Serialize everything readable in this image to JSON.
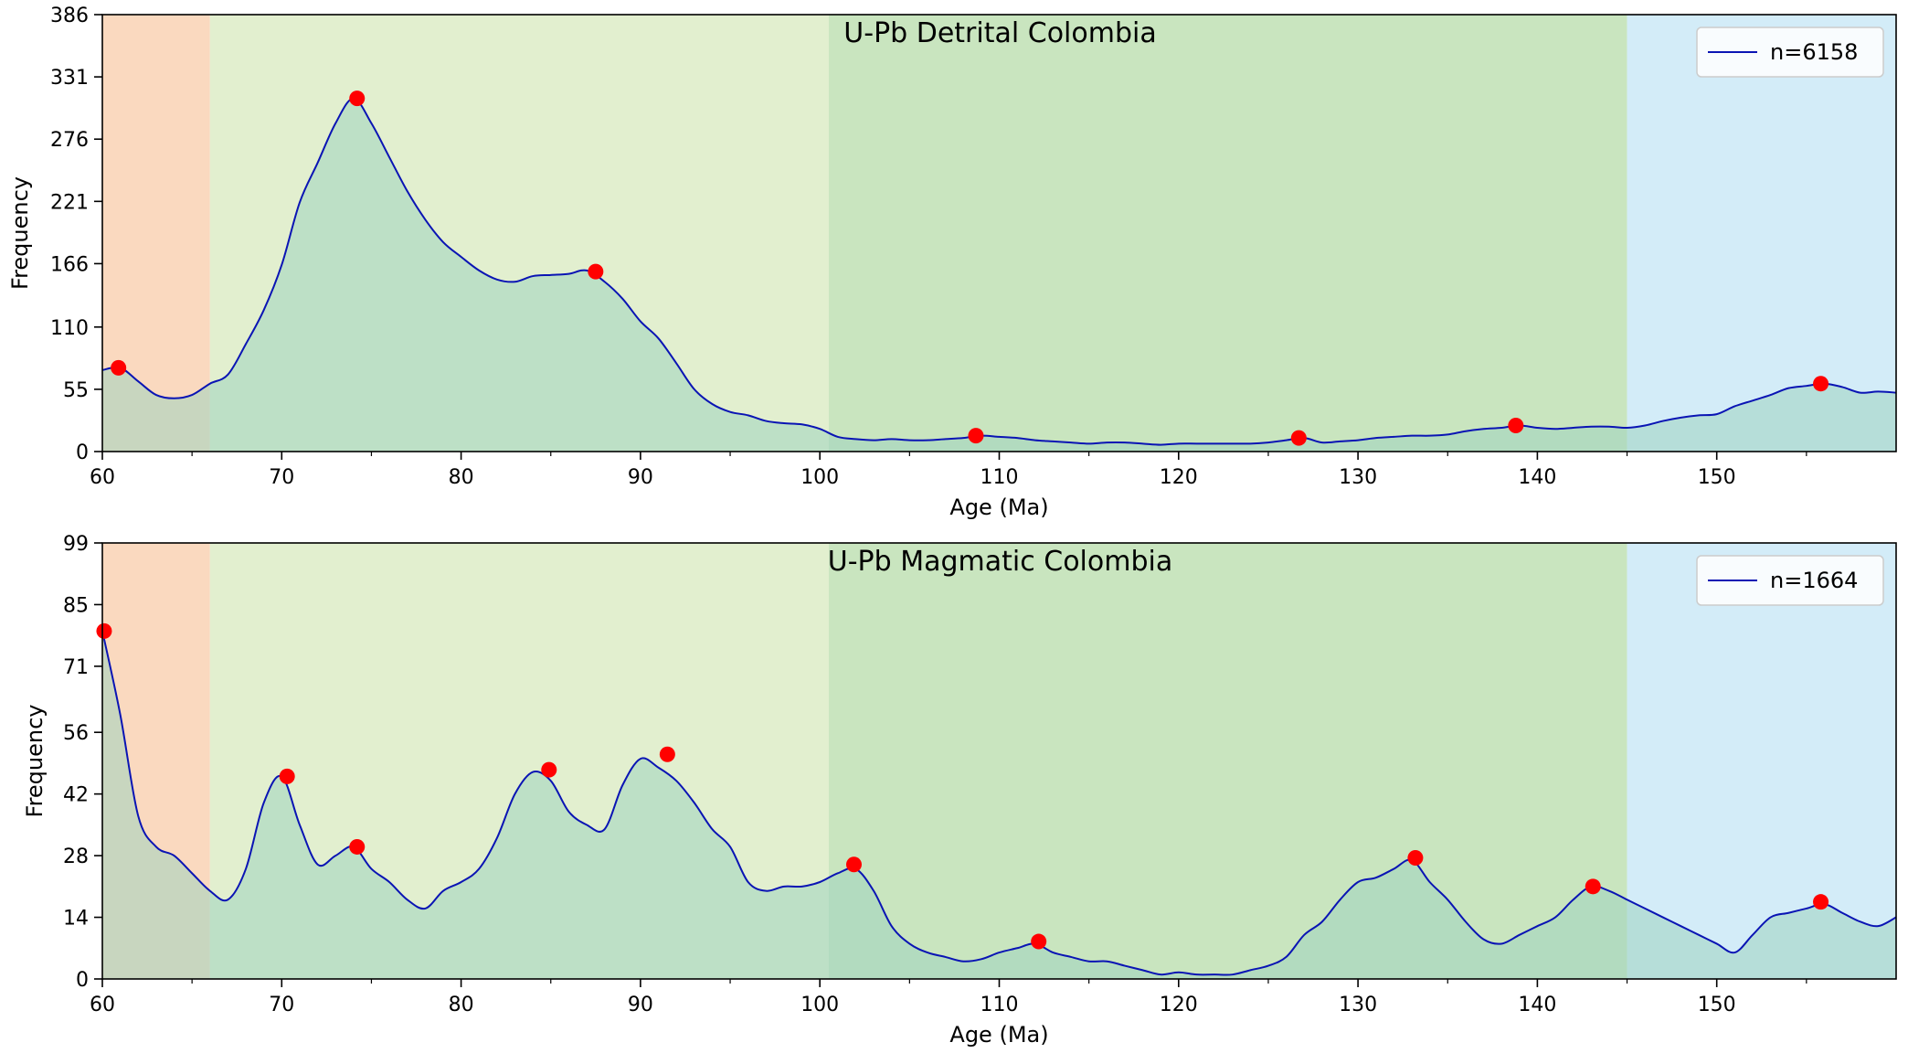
{
  "chart_data": [
    {
      "type": "line",
      "title": "U-Pb Detrital Colombia",
      "xlabel": "Age (Ma)",
      "ylabel": "Frequency",
      "xlim": [
        60,
        160
      ],
      "ylim": [
        0,
        386
      ],
      "xticks": [
        60,
        70,
        80,
        90,
        100,
        110,
        120,
        130,
        140,
        150
      ],
      "xtick_labels": [
        "60",
        "70",
        "80",
        "90",
        "100",
        "110",
        "120",
        "130",
        "140",
        "150"
      ],
      "yticks": [
        0,
        55,
        110,
        166,
        221,
        276,
        331,
        386
      ],
      "ytick_labels": [
        "0",
        "55",
        "110",
        "166",
        "221",
        "276",
        "331",
        "386"
      ],
      "grid": false,
      "legend": {
        "position": "top-right",
        "entries": [
          "n=6158"
        ]
      },
      "background_bands": [
        {
          "from": 60,
          "to": 66,
          "color": "#fad9bf"
        },
        {
          "from": 66,
          "to": 100.5,
          "color": "#e2efcf"
        },
        {
          "from": 100.5,
          "to": 145,
          "color": "#c9e5bf"
        },
        {
          "from": 145,
          "to": 160,
          "color": "#d3ecf8"
        }
      ],
      "line_color": "#0a14b4",
      "fill_color": "#9ed3c0",
      "peak_color": "#ff0000",
      "series": [
        {
          "name": "n=6158",
          "x": [
            60,
            61,
            62,
            63,
            64,
            65,
            66,
            67,
            68,
            69,
            70,
            71,
            72,
            73,
            74,
            75,
            76,
            77,
            78,
            79,
            80,
            81,
            82,
            83,
            84,
            85,
            86,
            87,
            88,
            89,
            90,
            91,
            92,
            93,
            94,
            95,
            96,
            97,
            98,
            99,
            100,
            101,
            102,
            103,
            104,
            105,
            106,
            107,
            108,
            109,
            110,
            111,
            112,
            113,
            114,
            115,
            116,
            117,
            118,
            119,
            120,
            121,
            122,
            123,
            124,
            125,
            126,
            127,
            128,
            129,
            130,
            131,
            132,
            133,
            134,
            135,
            136,
            137,
            138,
            139,
            140,
            141,
            142,
            143,
            144,
            145,
            146,
            147,
            148,
            149,
            150,
            151,
            152,
            153,
            154,
            155,
            156,
            157,
            158,
            159,
            160
          ],
          "y": [
            72,
            74,
            62,
            50,
            47,
            50,
            60,
            68,
            95,
            125,
            165,
            220,
            255,
            290,
            312,
            290,
            260,
            230,
            205,
            185,
            172,
            160,
            152,
            150,
            155,
            156,
            157,
            160,
            150,
            135,
            115,
            100,
            78,
            55,
            42,
            35,
            32,
            27,
            25,
            24,
            20,
            13,
            11,
            10,
            11,
            10,
            10,
            11,
            12,
            14,
            13,
            12,
            10,
            9,
            8,
            7,
            8,
            8,
            7,
            6,
            7,
            7,
            7,
            7,
            7,
            8,
            10,
            12,
            8,
            9,
            10,
            12,
            13,
            14,
            14,
            15,
            18,
            20,
            21,
            23,
            21,
            20,
            21,
            22,
            22,
            21,
            23,
            27,
            30,
            32,
            33,
            40,
            45,
            50,
            56,
            58,
            60,
            57,
            52,
            53,
            52
          ]
        }
      ],
      "peaks": [
        {
          "x": 60.9,
          "y": 74
        },
        {
          "x": 74.2,
          "y": 312
        },
        {
          "x": 87.5,
          "y": 159
        },
        {
          "x": 108.7,
          "y": 14
        },
        {
          "x": 126.7,
          "y": 12
        },
        {
          "x": 138.8,
          "y": 23
        },
        {
          "x": 155.8,
          "y": 60
        }
      ]
    },
    {
      "type": "line",
      "title": "U-Pb Magmatic Colombia",
      "xlabel": "Age (Ma)",
      "ylabel": "Frequency",
      "xlim": [
        60,
        160
      ],
      "ylim": [
        0,
        99
      ],
      "xticks": [
        60,
        70,
        80,
        90,
        100,
        110,
        120,
        130,
        140,
        150
      ],
      "xtick_labels": [
        "60",
        "70",
        "80",
        "90",
        "100",
        "110",
        "120",
        "130",
        "140",
        "150"
      ],
      "yticks": [
        0,
        14,
        28,
        42,
        56,
        71,
        85,
        99
      ],
      "ytick_labels": [
        "0",
        "14",
        "28",
        "42",
        "56",
        "71",
        "85",
        "99"
      ],
      "grid": false,
      "legend": {
        "position": "top-right",
        "entries": [
          "n=1664"
        ]
      },
      "background_bands": [
        {
          "from": 60,
          "to": 66,
          "color": "#fad9bf"
        },
        {
          "from": 66,
          "to": 100.5,
          "color": "#e2efcf"
        },
        {
          "from": 100.5,
          "to": 145,
          "color": "#c9e5bf"
        },
        {
          "from": 145,
          "to": 160,
          "color": "#d3ecf8"
        }
      ],
      "line_color": "#0a14b4",
      "fill_color": "#9ed3c0",
      "peak_color": "#ff0000",
      "series": [
        {
          "name": "n=1664",
          "x": [
            60,
            61,
            62,
            63,
            64,
            65,
            66,
            67,
            68,
            69,
            70,
            71,
            72,
            73,
            74,
            75,
            76,
            77,
            78,
            79,
            80,
            81,
            82,
            83,
            84,
            85,
            86,
            87,
            88,
            89,
            90,
            91,
            92,
            93,
            94,
            95,
            96,
            97,
            98,
            99,
            100,
            101,
            102,
            103,
            104,
            105,
            106,
            107,
            108,
            109,
            110,
            111,
            112,
            113,
            114,
            115,
            116,
            117,
            118,
            119,
            120,
            121,
            122,
            123,
            124,
            125,
            126,
            127,
            128,
            129,
            130,
            131,
            132,
            133,
            134,
            135,
            136,
            137,
            138,
            139,
            140,
            141,
            142,
            143,
            144,
            145,
            146,
            147,
            148,
            149,
            150,
            151,
            152,
            153,
            154,
            155,
            156,
            157,
            158,
            159,
            160
          ],
          "y": [
            79,
            60,
            37,
            30,
            28,
            24,
            20,
            18,
            25,
            40,
            46,
            35,
            26,
            28,
            30,
            25,
            22,
            18,
            16,
            20,
            22,
            25,
            32,
            42,
            47,
            45,
            38,
            35,
            34,
            44,
            50,
            48,
            45,
            40,
            34,
            30,
            22,
            20,
            21,
            21,
            22,
            24,
            25,
            20,
            12,
            8,
            6,
            5,
            4,
            4.5,
            6,
            7,
            8,
            6,
            5,
            4,
            4,
            3,
            2,
            1,
            1.5,
            1,
            1,
            1,
            2,
            3,
            5,
            10,
            13,
            18,
            22,
            23,
            25,
            27,
            22,
            18,
            13,
            9,
            8,
            10,
            12,
            14,
            18,
            21,
            20,
            18,
            16,
            14,
            12,
            10,
            8,
            6,
            10,
            14,
            15,
            16,
            17,
            15,
            13,
            12,
            14
          ]
        }
      ],
      "peaks": [
        {
          "x": 60.1,
          "y": 79
        },
        {
          "x": 70.3,
          "y": 46
        },
        {
          "x": 74.2,
          "y": 30
        },
        {
          "x": 84.9,
          "y": 47.5
        },
        {
          "x": 91.5,
          "y": 51
        },
        {
          "x": 101.9,
          "y": 26
        },
        {
          "x": 112.2,
          "y": 8.5
        },
        {
          "x": 133.2,
          "y": 27.5
        },
        {
          "x": 143.1,
          "y": 21
        },
        {
          "x": 155.8,
          "y": 17.5
        }
      ]
    }
  ]
}
